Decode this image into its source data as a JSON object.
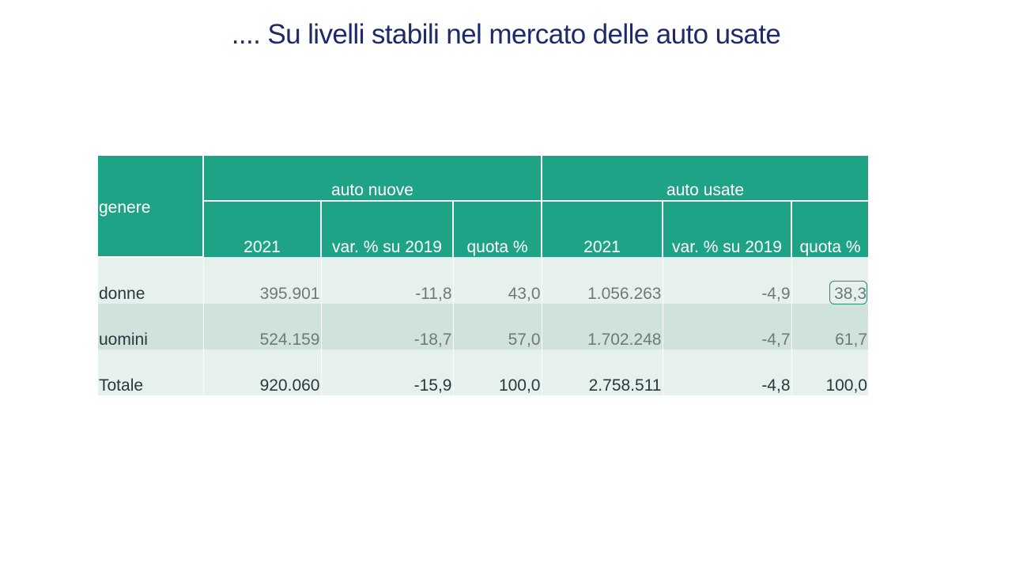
{
  "title": ".... Su livelli stabili nel mercato delle auto usate",
  "colors": {
    "title": "#1f2a6b",
    "header_bg": "#1fa386",
    "row_light": "#e6f0ed",
    "row_mid": "#cfe2dc",
    "text_muted": "#6e7a78",
    "text_dark": "#26393d",
    "highlight_border": "#2e8a6e"
  },
  "table": {
    "header": {
      "genere": "genere",
      "group_new": "auto nuove",
      "group_used": "auto usate",
      "sub_new": [
        "2021",
        "var. % su 2019",
        "quota %"
      ],
      "sub_used": [
        "2021",
        "var. % su 2019",
        "quota %"
      ]
    },
    "rows": [
      {
        "label": "donne",
        "new_2021": "395.901",
        "new_var": "-11,8",
        "new_quota": "43,0",
        "used_2021": "1.056.263",
        "used_var": "-4,9",
        "used_quota": "38,3"
      },
      {
        "label": "uomini",
        "new_2021": "524.159",
        "new_var": "-18,7",
        "new_quota": "57,0",
        "used_2021": "1.702.248",
        "used_var": "-4,7",
        "used_quota": "61,7"
      },
      {
        "label": "Totale",
        "new_2021": "920.060",
        "new_var": "-15,9",
        "new_quota": "100,0",
        "used_2021": "2.758.511",
        "used_var": "-4,8",
        "used_quota": "100,0"
      }
    ]
  }
}
